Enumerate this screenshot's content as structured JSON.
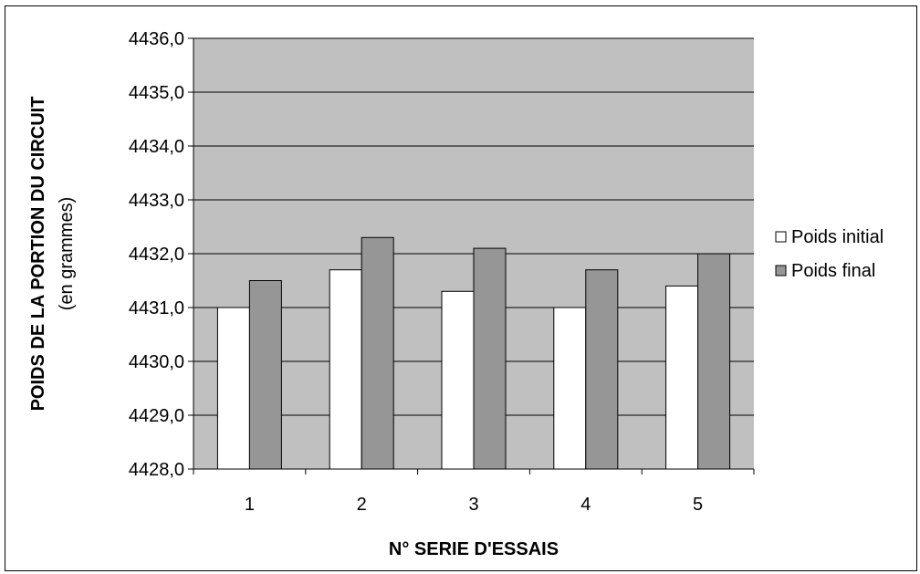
{
  "chart_data": {
    "type": "bar",
    "categories": [
      "1",
      "2",
      "3",
      "4",
      "5"
    ],
    "series": [
      {
        "name": "Poids initial",
        "values": [
          4431.0,
          4431.7,
          4431.3,
          4431.0,
          4431.4
        ],
        "color": "#ffffff"
      },
      {
        "name": "Poids final",
        "values": [
          4431.5,
          4432.3,
          4432.1,
          4431.7,
          4432.0
        ],
        "color": "#969696"
      }
    ],
    "xlabel": "N° SERIE D'ESSAIS",
    "ylabel": "POIDS DE LA PORTION DU CIRCUIT",
    "ylabel_sub": "(en grammes)",
    "ylim": [
      4428.0,
      4436.0
    ],
    "yticks": [
      "4428,0",
      "4429,0",
      "4430,0",
      "4431,0",
      "4432,0",
      "4433,0",
      "4434,0",
      "4435,0",
      "4436,0"
    ],
    "grid": true,
    "legend": "right",
    "colors": {
      "plot_background": "#c0c0c0",
      "grid": "#000000"
    }
  }
}
